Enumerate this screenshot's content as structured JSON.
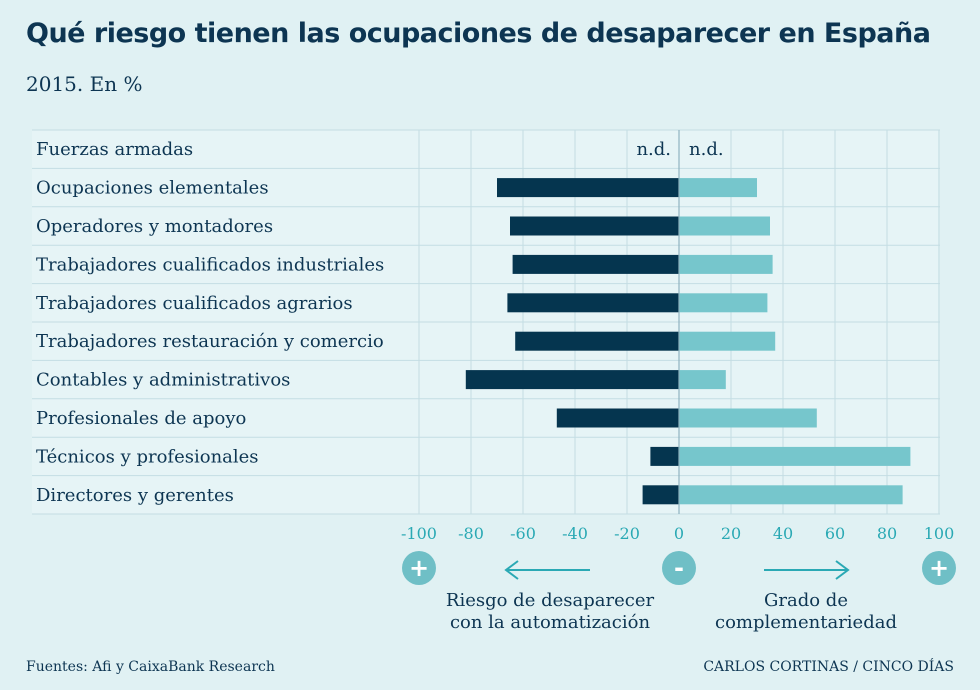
{
  "title": "Qué riesgo tienen las ocupaciones de desaparecer en España",
  "subtitle": "2015. En %",
  "chart_data": {
    "type": "bar",
    "orientation": "horizontal-diverging",
    "categories": [
      "Fuerzas armadas",
      "Ocupaciones elementales",
      "Operadores y montadores",
      "Trabajadores cualificados industriales",
      "Trabajadores cualificados agrarios",
      "Trabajadores restauración y comercio",
      "Contables y administrativos",
      "Profesionales de apoyo",
      "Técnicos y profesionales",
      "Directores y gerentes"
    ],
    "series": [
      {
        "name": "Riesgo de desaparecer con la automatización",
        "color": "#05354f",
        "values": [
          null,
          -70,
          -65,
          -64,
          -66,
          -63,
          -82,
          -47,
          -11,
          -14
        ]
      },
      {
        "name": "Grado de complementariedad",
        "color": "#76c6cc",
        "values": [
          null,
          30,
          35,
          36,
          34,
          37,
          18,
          53,
          89,
          86
        ]
      }
    ],
    "na_label": "n.d.",
    "xlim": [
      -100,
      100
    ],
    "xticks": [
      "-100",
      "-80",
      "-60",
      "-40",
      "-20",
      "0",
      "20",
      "40",
      "60",
      "80",
      "100"
    ],
    "grid": true,
    "legend": {
      "left": {
        "line1": "Riesgo de desaparecer",
        "line2": "con la automatización"
      },
      "right": {
        "line1": "Grado de",
        "line2": "complementariedad"
      },
      "markers": {
        "left_end": "+",
        "center": "-",
        "right_end": "+"
      }
    }
  },
  "footer": {
    "source": "Fuentes: Afi y CaixaBank Research",
    "credit": "CARLOS CORTINAS / CINCO DÍAS"
  }
}
